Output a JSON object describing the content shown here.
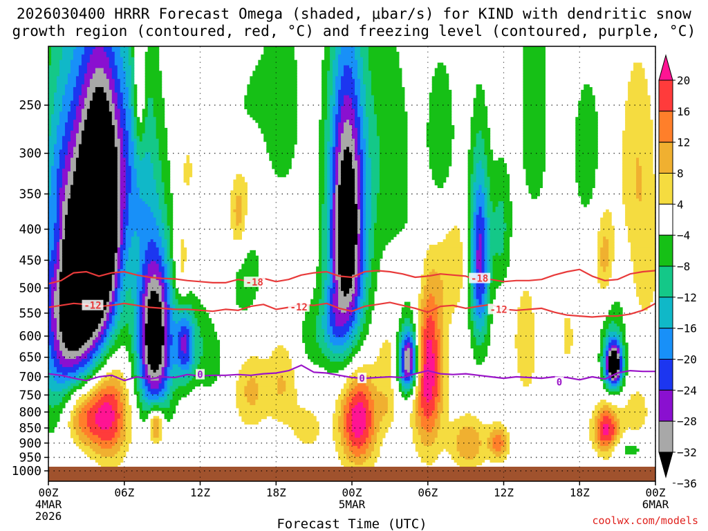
{
  "title_line1": "2026030400 HRRR Forecast Omega (shaded, μbar/s) for KIND with dendritic snow",
  "title_line2": "growth region (contoured, red, °C) and freezing level (contoured, purple, °C)",
  "credit": "coolwx.com/models",
  "chart_data": {
    "type": "heatmap",
    "xlabel": "Forecast Time (UTC)",
    "ylabel": "",
    "x_range_hours": [
      0,
      48
    ],
    "y_range_mb": [
      200,
      1040
    ],
    "y_log_scale": true,
    "grid": true,
    "x_ticks": [
      {
        "hour": 0,
        "label": "00Z",
        "sub1": "4MAR",
        "sub2": "2026"
      },
      {
        "hour": 6,
        "label": "06Z",
        "sub1": "",
        "sub2": ""
      },
      {
        "hour": 12,
        "label": "12Z",
        "sub1": "",
        "sub2": ""
      },
      {
        "hour": 18,
        "label": "18Z",
        "sub1": "",
        "sub2": ""
      },
      {
        "hour": 24,
        "label": "00Z",
        "sub1": "5MAR",
        "sub2": ""
      },
      {
        "hour": 30,
        "label": "06Z",
        "sub1": "",
        "sub2": ""
      },
      {
        "hour": 36,
        "label": "12Z",
        "sub1": "",
        "sub2": ""
      },
      {
        "hour": 42,
        "label": "18Z",
        "sub1": "",
        "sub2": ""
      },
      {
        "hour": 48,
        "label": "00Z",
        "sub1": "6MAR",
        "sub2": ""
      }
    ],
    "y_ticks": [
      250,
      300,
      350,
      400,
      450,
      500,
      550,
      600,
      650,
      700,
      750,
      800,
      850,
      900,
      950,
      1000
    ],
    "colorbar": {
      "labels": [
        "20",
        "16",
        "12",
        "8",
        "4",
        "−4",
        "−8",
        "−12",
        "−16",
        "−20",
        "−24",
        "−28",
        "−32",
        "−36"
      ],
      "colors_top_to_bottom": [
        "#ff1493",
        "#ff3b3b",
        "#ff7f2a",
        "#f0b030",
        "#f5dc40",
        "#ffffff",
        "#16c016",
        "#14c888",
        "#10b8c8",
        "#1890f8",
        "#1c36f0",
        "#8a10d0",
        "#a8a8a8",
        "#000000"
      ]
    },
    "ground_level_mb": 1000,
    "contours": [
      {
        "label": "-18",
        "color": "#e83a3a",
        "points": [
          [
            0,
            492
          ],
          [
            1,
            486
          ],
          [
            2,
            472
          ],
          [
            3,
            470
          ],
          [
            4,
            478
          ],
          [
            5,
            472
          ],
          [
            6,
            470
          ],
          [
            7,
            476
          ],
          [
            8,
            480
          ],
          [
            9,
            482
          ],
          [
            10,
            483
          ],
          [
            11,
            486
          ],
          [
            12,
            488
          ],
          [
            13,
            490
          ],
          [
            14,
            490
          ],
          [
            15,
            484
          ],
          [
            16,
            488
          ],
          [
            17,
            482
          ],
          [
            18,
            488
          ],
          [
            19,
            484
          ],
          [
            20,
            476
          ],
          [
            21,
            472
          ],
          [
            22,
            470
          ],
          [
            23,
            478
          ],
          [
            24,
            480
          ],
          [
            25,
            470
          ],
          [
            26,
            468
          ],
          [
            27,
            470
          ],
          [
            28,
            474
          ],
          [
            29,
            480
          ],
          [
            30,
            478
          ],
          [
            31,
            474
          ],
          [
            32,
            476
          ],
          [
            33,
            478
          ],
          [
            34,
            486
          ],
          [
            35,
            484
          ],
          [
            36,
            488
          ],
          [
            37,
            486
          ],
          [
            38,
            486
          ],
          [
            39,
            484
          ],
          [
            40,
            476
          ],
          [
            41,
            470
          ],
          [
            42,
            466
          ],
          [
            43,
            478
          ],
          [
            44,
            486
          ],
          [
            45,
            484
          ],
          [
            46,
            474
          ],
          [
            47,
            470
          ],
          [
            48,
            468
          ]
        ]
      },
      {
        "label": "-12",
        "color": "#e83a3a",
        "points": [
          [
            0,
            538
          ],
          [
            1,
            534
          ],
          [
            2,
            530
          ],
          [
            3,
            532
          ],
          [
            4,
            536
          ],
          [
            5,
            534
          ],
          [
            6,
            530
          ],
          [
            7,
            534
          ],
          [
            8,
            538
          ],
          [
            9,
            540
          ],
          [
            10,
            542
          ],
          [
            11,
            542
          ],
          [
            12,
            544
          ],
          [
            13,
            546
          ],
          [
            14,
            542
          ],
          [
            15,
            544
          ],
          [
            16,
            536
          ],
          [
            17,
            532
          ],
          [
            18,
            542
          ],
          [
            19,
            538
          ],
          [
            20,
            532
          ],
          [
            21,
            534
          ],
          [
            22,
            530
          ],
          [
            23,
            540
          ],
          [
            24,
            546
          ],
          [
            25,
            536
          ],
          [
            26,
            532
          ],
          [
            27,
            528
          ],
          [
            28,
            534
          ],
          [
            29,
            540
          ],
          [
            30,
            548
          ],
          [
            31,
            536
          ],
          [
            32,
            534
          ],
          [
            33,
            540
          ],
          [
            34,
            536
          ],
          [
            35,
            532
          ],
          [
            36,
            542
          ],
          [
            37,
            544
          ],
          [
            38,
            542
          ],
          [
            39,
            540
          ],
          [
            40,
            548
          ],
          [
            41,
            554
          ],
          [
            42,
            556
          ],
          [
            43,
            558
          ],
          [
            44,
            556
          ],
          [
            45,
            556
          ],
          [
            46,
            552
          ],
          [
            47,
            544
          ],
          [
            48,
            530
          ]
        ]
      },
      {
        "label": "0",
        "color": "#9a14c8",
        "points": [
          [
            0,
            692
          ],
          [
            1,
            696
          ],
          [
            2,
            704
          ],
          [
            3,
            710
          ],
          [
            4,
            700
          ],
          [
            5,
            696
          ],
          [
            6,
            710
          ],
          [
            7,
            700
          ],
          [
            8,
            706
          ],
          [
            9,
            700
          ],
          [
            10,
            702
          ],
          [
            11,
            694
          ],
          [
            12,
            698
          ],
          [
            13,
            696
          ],
          [
            14,
            696
          ],
          [
            15,
            694
          ],
          [
            16,
            696
          ],
          [
            17,
            692
          ],
          [
            18,
            690
          ],
          [
            19,
            684
          ],
          [
            20,
            670
          ],
          [
            21,
            688
          ],
          [
            22,
            690
          ],
          [
            23,
            696
          ],
          [
            24,
            702
          ],
          [
            25,
            704
          ],
          [
            26,
            702
          ],
          [
            27,
            700
          ],
          [
            28,
            702
          ],
          [
            29,
            692
          ],
          [
            30,
            684
          ],
          [
            31,
            692
          ],
          [
            32,
            694
          ],
          [
            33,
            692
          ],
          [
            34,
            696
          ],
          [
            35,
            700
          ],
          [
            36,
            704
          ],
          [
            37,
            700
          ],
          [
            38,
            702
          ],
          [
            39,
            704
          ],
          [
            40,
            700
          ],
          [
            41,
            702
          ],
          [
            42,
            708
          ],
          [
            43,
            700
          ],
          [
            44,
            706
          ],
          [
            45,
            690
          ],
          [
            46,
            684
          ],
          [
            47,
            686
          ],
          [
            48,
            686
          ]
        ]
      }
    ],
    "contour_labels": [
      {
        "text": "-18",
        "color": "#e83a3a",
        "hour": 16.3,
        "mb": 489
      },
      {
        "text": "-18",
        "color": "#e83a3a",
        "hour": 34.1,
        "mb": 482
      },
      {
        "text": "-12",
        "color": "#e83a3a",
        "hour": 3.5,
        "mb": 534
      },
      {
        "text": "-12",
        "color": "#e83a3a",
        "hour": 19.8,
        "mb": 537
      },
      {
        "text": "-12",
        "color": "#e83a3a",
        "hour": 35.6,
        "mb": 542
      },
      {
        "text": "0",
        "color": "#9a14c8",
        "hour": 12.0,
        "mb": 694
      },
      {
        "text": "0",
        "color": "#9a14c8",
        "hour": 24.8,
        "mb": 704
      },
      {
        "text": "0",
        "color": "#9a14c8",
        "hour": 40.4,
        "mb": 714
      }
    ],
    "omega_features": [
      {
        "hour": 2.0,
        "mb": 520,
        "hw": 2.5,
        "hh": 300,
        "v": -40
      },
      {
        "hour": 4.2,
        "mb": 380,
        "hw": 1.6,
        "hh": 190,
        "v": -40
      },
      {
        "hour": 8.4,
        "mb": 600,
        "hw": 1.4,
        "hh": 190,
        "v": -40
      },
      {
        "hour": 23.6,
        "mb": 400,
        "hw": 1.5,
        "hh": 220,
        "v": -40
      },
      {
        "hour": 6.7,
        "mb": 300,
        "hw": 2.0,
        "hh": 150,
        "v": -14
      },
      {
        "hour": 10.8,
        "mb": 620,
        "hw": 0.8,
        "hh": 90,
        "v": -22
      },
      {
        "hour": 12.8,
        "mb": 620,
        "hw": 1.5,
        "hh": 120,
        "v": -9
      },
      {
        "hour": 15.5,
        "mb": 470,
        "hw": 1.8,
        "hh": 120,
        "v": -6
      },
      {
        "hour": 16.2,
        "mb": 260,
        "hw": 1.5,
        "hh": 60,
        "v": -6
      },
      {
        "hour": 18.5,
        "mb": 250,
        "hw": 1.6,
        "hh": 100,
        "v": -7
      },
      {
        "hour": 20.8,
        "mb": 600,
        "hw": 1.2,
        "hh": 90,
        "v": -6
      },
      {
        "hour": 22.5,
        "mb": 580,
        "hw": 1.0,
        "hh": 80,
        "v": -9
      },
      {
        "hour": 26.8,
        "mb": 300,
        "hw": 2.0,
        "hh": 150,
        "v": -7
      },
      {
        "hour": 28.5,
        "mb": 660,
        "hw": 0.8,
        "hh": 80,
        "v": -36
      },
      {
        "hour": 31.0,
        "mb": 300,
        "hw": 1.5,
        "hh": 120,
        "v": -7
      },
      {
        "hour": 34.1,
        "mb": 450,
        "hw": 0.8,
        "hh": 160,
        "v": -26
      },
      {
        "hour": 35.8,
        "mb": 400,
        "hw": 0.8,
        "hh": 100,
        "v": -9
      },
      {
        "hour": 38.4,
        "mb": 260,
        "hw": 1.5,
        "hh": 160,
        "v": -6
      },
      {
        "hour": 42.6,
        "mb": 300,
        "hw": 1.5,
        "hh": 110,
        "v": -6
      },
      {
        "hour": 44.5,
        "mb": 560,
        "hw": 1.2,
        "hh": 120,
        "v": -7
      },
      {
        "hour": 44.7,
        "mb": 670,
        "hw": 0.7,
        "hh": 60,
        "v": -40
      },
      {
        "hour": 45.8,
        "mb": 920,
        "hw": 2.0,
        "hh": 40,
        "v": -6
      },
      {
        "hour": 29.0,
        "mb": 500,
        "hw": 1.0,
        "hh": 120,
        "v": -6
      },
      {
        "hour": 39.5,
        "mb": 600,
        "hw": 1.0,
        "hh": 120,
        "v": -8
      },
      {
        "hour": 2.5,
        "mb": 800,
        "hw": 1.6,
        "hh": 120,
        "v": 24
      },
      {
        "hour": 4.7,
        "mb": 800,
        "hw": 1.6,
        "hh": 150,
        "v": 24
      },
      {
        "hour": 8.5,
        "mb": 840,
        "hw": 0.6,
        "hh": 60,
        "v": 20
      },
      {
        "hour": 7.2,
        "mb": 230,
        "hw": 0.5,
        "hh": 70,
        "v": 14
      },
      {
        "hour": 13.5,
        "mb": 530,
        "hw": 1.0,
        "hh": 120,
        "v": 6
      },
      {
        "hour": 15.0,
        "mb": 380,
        "hw": 0.7,
        "hh": 60,
        "v": 12
      },
      {
        "hour": 16.3,
        "mb": 320,
        "hw": 1.0,
        "hh": 70,
        "v": 6
      },
      {
        "hour": 10.5,
        "mb": 460,
        "hw": 0.6,
        "hh": 80,
        "v": 8
      },
      {
        "hour": 16.0,
        "mb": 740,
        "hw": 1.4,
        "hh": 110,
        "v": 9
      },
      {
        "hour": 18.5,
        "mb": 720,
        "hw": 1.2,
        "hh": 120,
        "v": 8
      },
      {
        "hour": 20.5,
        "mb": 850,
        "hw": 1.3,
        "hh": 80,
        "v": 6
      },
      {
        "hour": 24.5,
        "mb": 820,
        "hw": 1.5,
        "hh": 150,
        "v": 24
      },
      {
        "hour": 26.8,
        "mb": 650,
        "hw": 0.8,
        "hh": 70,
        "v": 6
      },
      {
        "hour": 30.0,
        "mb": 680,
        "hw": 1.2,
        "hh": 220,
        "v": 24
      },
      {
        "hour": 32.0,
        "mb": 450,
        "hw": 1.2,
        "hh": 100,
        "v": 8
      },
      {
        "hour": 33.2,
        "mb": 900,
        "hw": 1.4,
        "hh": 90,
        "v": 12
      },
      {
        "hour": 35.6,
        "mb": 900,
        "hw": 0.8,
        "hh": 60,
        "v": 14
      },
      {
        "hour": 37.8,
        "mb": 610,
        "hw": 1.0,
        "hh": 140,
        "v": 8
      },
      {
        "hour": 40.5,
        "mb": 600,
        "hw": 1.5,
        "hh": 120,
        "v": 6
      },
      {
        "hour": 44.0,
        "mb": 450,
        "hw": 0.8,
        "hh": 90,
        "v": 12
      },
      {
        "hour": 44.1,
        "mb": 860,
        "hw": 1.0,
        "hh": 80,
        "v": 22
      },
      {
        "hour": 46.6,
        "mb": 320,
        "hw": 1.5,
        "hh": 130,
        "v": 8
      },
      {
        "hour": 47.2,
        "mb": 480,
        "hw": 1.0,
        "hh": 90,
        "v": 6
      },
      {
        "hour": 46.5,
        "mb": 800,
        "hw": 1.2,
        "hh": 90,
        "v": 6
      },
      {
        "hour": 11.0,
        "mb": 320,
        "hw": 0.6,
        "hh": 40,
        "v": 5
      },
      {
        "hour": 0.6,
        "mb": 420,
        "hw": 0.5,
        "hh": 60,
        "v": 5
      },
      {
        "hour": 26.8,
        "mb": 780,
        "hw": 0.8,
        "hh": 70,
        "v": 6
      }
    ]
  }
}
